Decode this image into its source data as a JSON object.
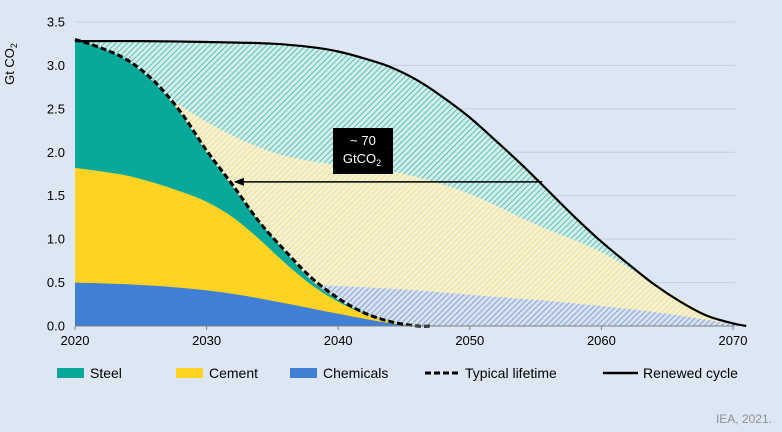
{
  "chart_data": {
    "type": "area",
    "ylabel": "Gt CO2",
    "ylabel_main": "Gt CO",
    "ylabel_sub": "2",
    "xlim": [
      2020,
      2072
    ],
    "ylim": [
      0,
      3.5
    ],
    "x_ticks": [
      "2020",
      "2030",
      "2040",
      "2050",
      "2060",
      "2070"
    ],
    "y_ticks": [
      "0.0",
      "0.5",
      "1.0",
      "1.5",
      "2.0",
      "2.5",
      "3.0",
      "3.5"
    ],
    "grid": true,
    "legend_position": "bottom",
    "series": [
      {
        "name": "Chemicals",
        "color": "#3f7fd4",
        "x": [
          2020,
          2024,
          2028,
          2032,
          2036,
          2040,
          2044,
          2046
        ],
        "values": [
          0.5,
          0.48,
          0.44,
          0.37,
          0.26,
          0.14,
          0.03,
          0.0
        ]
      },
      {
        "name": "Cement",
        "color": "#ffd323",
        "x": [
          2020,
          2022,
          2024,
          2026,
          2028,
          2030,
          2032,
          2034,
          2036,
          2038,
          2040,
          2042,
          2044,
          2046
        ],
        "values": [
          1.82,
          1.78,
          1.73,
          1.65,
          1.55,
          1.43,
          1.25,
          1.0,
          0.72,
          0.47,
          0.28,
          0.14,
          0.05,
          0.0
        ]
      },
      {
        "name": "Steel",
        "color": "#08a99b",
        "x": [
          2020,
          2022,
          2024,
          2026,
          2028,
          2030,
          2032,
          2034,
          2036,
          2038,
          2040,
          2042,
          2044,
          2046
        ],
        "values": [
          3.3,
          3.2,
          3.05,
          2.8,
          2.45,
          2.0,
          1.6,
          1.2,
          0.85,
          0.52,
          0.3,
          0.15,
          0.05,
          0.0
        ]
      },
      {
        "name": "Typical lifetime",
        "color": "#000000",
        "style": "dashed",
        "x": [
          2020,
          2022,
          2024,
          2026,
          2028,
          2030,
          2032,
          2034,
          2036,
          2038,
          2040,
          2042,
          2044,
          2046,
          2047
        ],
        "values": [
          3.3,
          3.2,
          3.06,
          2.82,
          2.47,
          2.02,
          1.62,
          1.2,
          0.86,
          0.55,
          0.32,
          0.15,
          0.05,
          0.0,
          0.0
        ]
      },
      {
        "name": "Renewed cycle",
        "color": "#000000",
        "style": "solid",
        "x": [
          2020,
          2025,
          2030,
          2035,
          2038,
          2040,
          2042,
          2044,
          2046,
          2048,
          2050,
          2052,
          2054,
          2056,
          2058,
          2060,
          2062,
          2064,
          2066,
          2068,
          2070,
          2071
        ],
        "values": [
          3.28,
          3.28,
          3.27,
          3.25,
          3.21,
          3.16,
          3.08,
          2.98,
          2.83,
          2.63,
          2.4,
          2.13,
          1.85,
          1.55,
          1.25,
          0.97,
          0.72,
          0.48,
          0.28,
          0.12,
          0.03,
          0.0
        ]
      }
    ],
    "hatched_bands": [
      {
        "name": "Renewed chemicals",
        "color": "#3f7fd4",
        "x": [
          2020,
          2030,
          2035,
          2040,
          2045,
          2050,
          2055,
          2060,
          2065,
          2068,
          2070,
          2071
        ],
        "values": [
          0.5,
          0.49,
          0.48,
          0.46,
          0.42,
          0.36,
          0.3,
          0.23,
          0.14,
          0.07,
          0.02,
          0.0
        ]
      },
      {
        "name": "Renewed cement",
        "color": "#ffe977",
        "x": [
          2020,
          2025,
          2030,
          2035,
          2040,
          2045,
          2050,
          2055,
          2060,
          2065,
          2068,
          2070,
          2071
        ],
        "values": [
          3.3,
          2.85,
          2.35,
          2.0,
          1.85,
          1.75,
          1.52,
          1.17,
          0.85,
          0.4,
          0.14,
          0.03,
          0.0
        ]
      }
    ],
    "annotation": {
      "text_line1": "~ 70",
      "text_line2_main": "GtCO",
      "text_line2_sub": "2",
      "arrow_from_x": 2055.5,
      "arrow_to_x": 2032,
      "arrow_y": 1.66
    },
    "source": "IEA, 2021."
  }
}
